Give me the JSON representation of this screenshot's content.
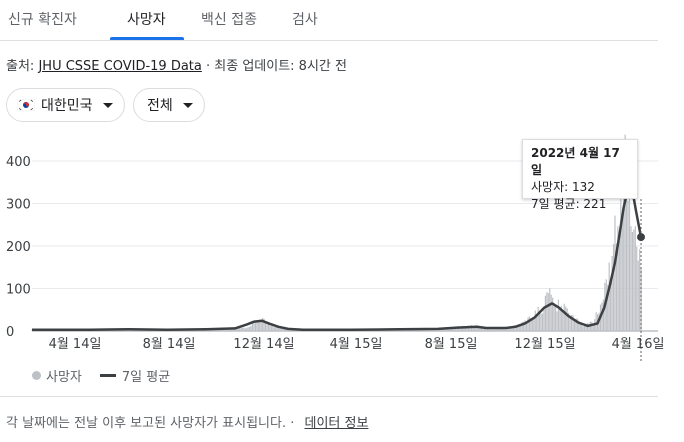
{
  "tabs": [
    {
      "label": "신규 확진자",
      "active": false
    },
    {
      "label": "사망자",
      "active": true
    },
    {
      "label": "백신 접종",
      "active": false
    },
    {
      "label": "검사",
      "active": false
    }
  ],
  "source": {
    "prefix": "출처:",
    "link": "JHU CSSE COVID-19 Data",
    "suffix": "· 최종 업데이트: 8시간 전"
  },
  "filters": {
    "country": "대한민국",
    "range": "전체"
  },
  "tooltip": {
    "date": "2022년 4월 17일",
    "deaths": "사망자: 132",
    "avg": "7일 평균: 221"
  },
  "legend": {
    "bars": "사망자",
    "line": "7일 평균"
  },
  "footer": {
    "text": "각 날짜에는 전날 이후 보고된 사망자가 표시됩니다. ·",
    "link": "데이터 정보"
  },
  "chart_data": {
    "type": "bar",
    "y_ticks": [
      "400",
      "300",
      "200",
      "100",
      "0"
    ],
    "ylim": [
      0,
      420
    ],
    "x_labels": [
      "4월 14일",
      "8월 14일",
      "12월 14일",
      "4월 15일",
      "8월 15일",
      "12월 15일",
      "4월 16일"
    ],
    "series": [
      {
        "name": "사망자",
        "values": [
          [
            0,
            3
          ],
          [
            60,
            3
          ],
          [
            100,
            4
          ],
          [
            140,
            3
          ],
          [
            180,
            4
          ],
          [
            210,
            5
          ],
          [
            225,
            10
          ],
          [
            232,
            22
          ],
          [
            238,
            30
          ],
          [
            243,
            20
          ],
          [
            250,
            12
          ],
          [
            260,
            6
          ],
          [
            280,
            3
          ],
          [
            330,
            4
          ],
          [
            380,
            5
          ],
          [
            420,
            6
          ],
          [
            440,
            9
          ],
          [
            460,
            12
          ],
          [
            470,
            6
          ],
          [
            490,
            8
          ],
          [
            500,
            12
          ],
          [
            510,
            20
          ],
          [
            520,
            38
          ],
          [
            530,
            62
          ],
          [
            535,
            85
          ],
          [
            540,
            72
          ],
          [
            548,
            55
          ],
          [
            560,
            30
          ],
          [
            570,
            15
          ],
          [
            580,
            20
          ],
          [
            590,
            65
          ],
          [
            595,
            110
          ],
          [
            600,
            160
          ],
          [
            605,
            255
          ],
          [
            610,
            330
          ],
          [
            615,
            380
          ],
          [
            620,
            340
          ],
          [
            625,
            260
          ],
          [
            630,
            132
          ]
        ]
      },
      {
        "name": "7일 평균",
        "values": [
          [
            0,
            3
          ],
          [
            60,
            3
          ],
          [
            100,
            4
          ],
          [
            140,
            3
          ],
          [
            180,
            4
          ],
          [
            210,
            6
          ],
          [
            222,
            15
          ],
          [
            230,
            22
          ],
          [
            238,
            24
          ],
          [
            245,
            18
          ],
          [
            255,
            10
          ],
          [
            265,
            5
          ],
          [
            280,
            3
          ],
          [
            330,
            3
          ],
          [
            380,
            4
          ],
          [
            420,
            5
          ],
          [
            440,
            8
          ],
          [
            460,
            10
          ],
          [
            470,
            7
          ],
          [
            490,
            7
          ],
          [
            500,
            10
          ],
          [
            510,
            18
          ],
          [
            520,
            32
          ],
          [
            530,
            55
          ],
          [
            538,
            65
          ],
          [
            545,
            55
          ],
          [
            555,
            35
          ],
          [
            565,
            20
          ],
          [
            575,
            12
          ],
          [
            585,
            18
          ],
          [
            592,
            55
          ],
          [
            598,
            110
          ],
          [
            603,
            160
          ],
          [
            608,
            230
          ],
          [
            612,
            290
          ],
          [
            616,
            330
          ],
          [
            620,
            345
          ],
          [
            625,
            280
          ],
          [
            630,
            221
          ]
        ]
      }
    ],
    "highlight": {
      "x": 630,
      "y": 221
    }
  },
  "colors": {
    "accent": "#1a73e8",
    "bar": "#bdc1c6",
    "line": "#3c4043",
    "flag_red": "#cd2e3a",
    "flag_blue": "#0047a0"
  }
}
